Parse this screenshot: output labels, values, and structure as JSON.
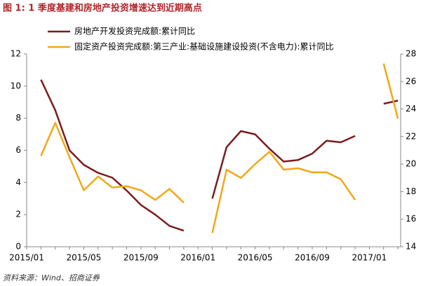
{
  "chart_data": {
    "type": "line",
    "title": "图 1: 1 季度基建和房地产投资增速达到近期高点",
    "source": "资料来源：Wind、招商证券",
    "categories": [
      "2015/01",
      null,
      null,
      null,
      "2015/05",
      null,
      null,
      null,
      "2015/09",
      null,
      null,
      null,
      "2016/01",
      null,
      null,
      null,
      "2016/05",
      null,
      null,
      null,
      "2016/09",
      null,
      null,
      null,
      "2017/01",
      null,
      null
    ],
    "series": [
      {
        "name": "房地产开发投资完成额:累计同比",
        "color": "#7a1c1f",
        "axis": "y",
        "values": [
          null,
          10.4,
          8.5,
          6.0,
          5.1,
          4.6,
          4.3,
          3.5,
          2.6,
          2.0,
          1.3,
          1.0,
          null,
          3.0,
          6.2,
          7.2,
          7.0,
          6.1,
          5.3,
          5.4,
          5.8,
          6.6,
          6.5,
          6.9,
          null,
          8.9,
          9.1
        ]
      },
      {
        "name": "固定资产投资完成额:第三产业:基础设施建设投资(不含电力):累计同比",
        "color": "#f0a818",
        "axis": "y2",
        "values": [
          null,
          20.6,
          23.0,
          20.5,
          18.1,
          19.1,
          18.3,
          18.4,
          18.1,
          17.4,
          18.2,
          17.2,
          null,
          15.0,
          19.6,
          19.0,
          20.0,
          20.9,
          19.6,
          19.7,
          19.4,
          19.4,
          18.9,
          17.4,
          null,
          27.3,
          23.3
        ]
      }
    ],
    "ylim": [
      0,
      12
    ],
    "yticks": [
      0,
      2,
      4,
      6,
      8,
      10,
      12
    ],
    "y2lim": [
      14,
      28
    ],
    "y2ticks": [
      14,
      16,
      18,
      20,
      22,
      24,
      26,
      28
    ],
    "legend": "top"
  }
}
